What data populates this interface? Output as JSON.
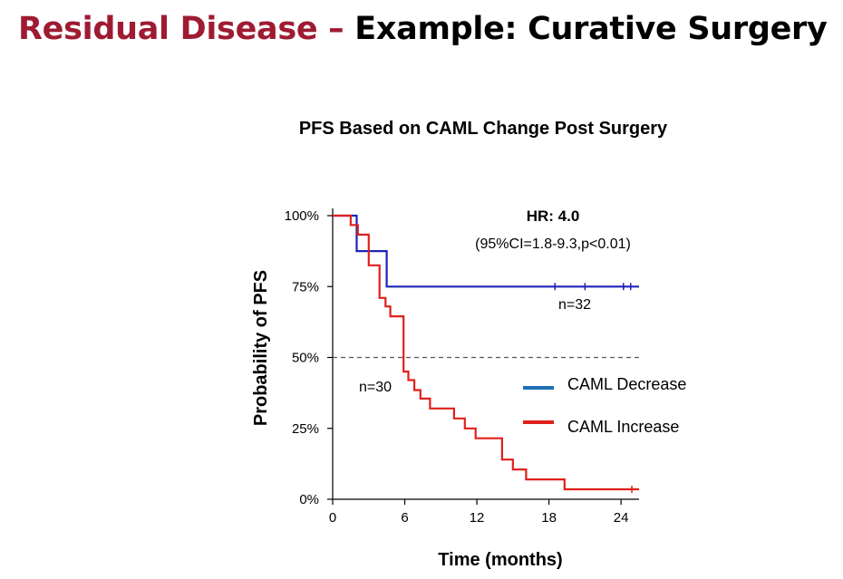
{
  "slide": {
    "title_part1": "Residual Disease – ",
    "title_part2": "Example: Curative Surgery",
    "accent_color": "#9e1b32"
  },
  "chart_data": {
    "type": "line",
    "subtype": "kaplan-meier-step",
    "title": "PFS Based on CAML Change Post Surgery",
    "xlabel": "Time (months)",
    "ylabel": "Probability of PFS",
    "xlim": [
      0,
      25.5
    ],
    "ylim": [
      0,
      100
    ],
    "x_ticks": [
      0,
      6,
      12,
      18,
      24
    ],
    "y_ticks": [
      {
        "value": 0,
        "label": "0%"
      },
      {
        "value": 25,
        "label": "25%"
      },
      {
        "value": 50,
        "label": "50%"
      },
      {
        "value": 75,
        "label": "75%"
      },
      {
        "value": 100,
        "label": "100%"
      }
    ],
    "reference_line": {
      "y": 50,
      "style": "dashed"
    },
    "annotation": {
      "hr": "HR: 4.0",
      "ci": "(95%CI=1.8-9.3,p<0.01)"
    },
    "series": [
      {
        "name": "CAML Decrease",
        "n_label": "n=32",
        "color": "#1c24b8",
        "legend_color": "#1f6fb5",
        "x": [
          0,
          2,
          2,
          4.5,
          4.5,
          25.5
        ],
        "y": [
          100,
          100,
          87.5,
          87.5,
          75,
          75
        ],
        "censor_x": [
          18.5,
          21,
          24.2,
          24.8
        ]
      },
      {
        "name": "CAML Increase",
        "n_label": "n=30",
        "color": "#e0201b",
        "legend_color": "#e0201b",
        "x": [
          0,
          1.5,
          1.5,
          2.1,
          2.1,
          3,
          3,
          3.9,
          3.9,
          4.4,
          4.4,
          4.8,
          4.8,
          5.9,
          5.9,
          6.3,
          6.3,
          6.8,
          6.8,
          7.3,
          7.3,
          8.1,
          8.1,
          10.1,
          10.1,
          11,
          11,
          11.9,
          11.9,
          14.1,
          14.1,
          15,
          15,
          16.1,
          16.1,
          19.3,
          19.3,
          25.5
        ],
        "y": [
          100,
          100,
          96.7,
          96.7,
          93.3,
          93.3,
          82.5,
          82.5,
          71,
          71,
          68,
          68,
          64.5,
          64.5,
          45,
          45,
          42,
          42,
          38.5,
          38.5,
          35.5,
          35.5,
          32,
          32,
          28.5,
          28.5,
          25,
          25,
          21.5,
          21.5,
          14,
          14,
          10.5,
          10.5,
          7,
          7,
          3.5,
          3.5
        ],
        "censor_x": [
          24.9
        ]
      }
    ],
    "legend_position": "right-middle"
  }
}
